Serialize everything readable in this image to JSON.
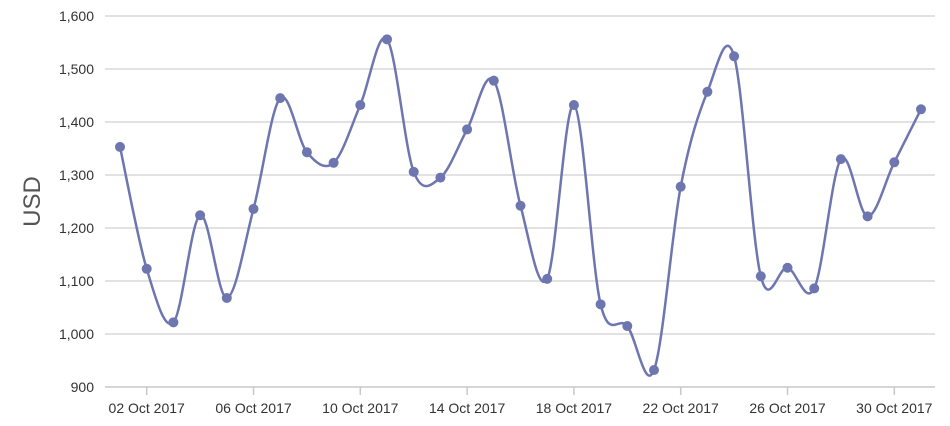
{
  "chart_data": {
    "type": "line",
    "title": "",
    "xlabel": "",
    "ylabel": "USD",
    "ylim": [
      900,
      1600
    ],
    "yticks": [
      900,
      1000,
      1100,
      1200,
      1300,
      1400,
      1500,
      1600
    ],
    "ytick_labels": [
      "900",
      "1,000",
      "1,100",
      "1,200",
      "1,300",
      "1,400",
      "1,500",
      "1,600"
    ],
    "x": [
      "2017-10-01",
      "2017-10-02",
      "2017-10-03",
      "2017-10-04",
      "2017-10-05",
      "2017-10-06",
      "2017-10-07",
      "2017-10-08",
      "2017-10-09",
      "2017-10-10",
      "2017-10-11",
      "2017-10-12",
      "2017-10-13",
      "2017-10-14",
      "2017-10-15",
      "2017-10-16",
      "2017-10-17",
      "2017-10-18",
      "2017-10-19",
      "2017-10-20",
      "2017-10-21",
      "2017-10-22",
      "2017-10-23",
      "2017-10-24",
      "2017-10-25",
      "2017-10-26",
      "2017-10-27",
      "2017-10-28",
      "2017-10-29",
      "2017-10-30",
      "2017-10-31"
    ],
    "xticks": [
      "2017-10-02",
      "2017-10-06",
      "2017-10-10",
      "2017-10-14",
      "2017-10-18",
      "2017-10-22",
      "2017-10-26",
      "2017-10-30"
    ],
    "xtick_labels": [
      "02 Oct 2017",
      "06 Oct 2017",
      "10 Oct 2017",
      "14 Oct 2017",
      "18 Oct 2017",
      "22 Oct 2017",
      "26 Oct 2017",
      "30 Oct 2017"
    ],
    "series": [
      {
        "values": [
          1353,
          1123,
          1022,
          1224,
          1068,
          1236,
          1445,
          1343,
          1323,
          1432,
          1556,
          1306,
          1295,
          1386,
          1478,
          1242,
          1104,
          1432,
          1056,
          1015,
          932,
          1278,
          1457,
          1524,
          1109,
          1125,
          1086,
          1330,
          1222,
          1324,
          1424
        ],
        "color": "#6e76b0"
      }
    ],
    "grid": true,
    "legend": "none"
  }
}
